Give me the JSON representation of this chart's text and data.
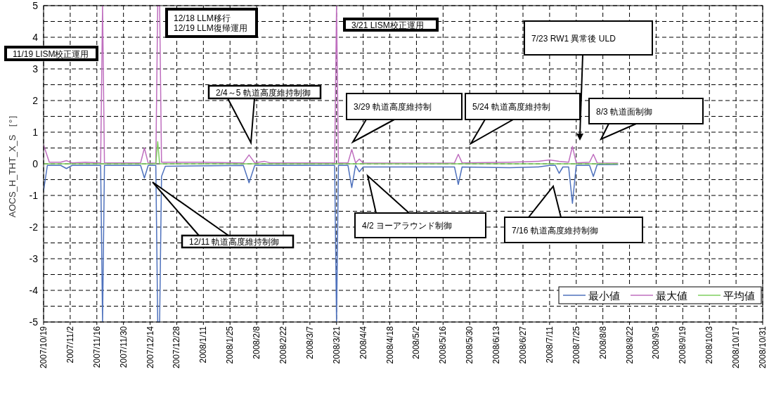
{
  "chart_data": {
    "type": "line",
    "ylabel": "AOCS_H_THT_X_S ［°］",
    "xlim": [
      "2007-10-19",
      "2008-10-31"
    ],
    "xticks": [
      {
        "value": "2007-10-19",
        "label": "2007/10/19"
      },
      {
        "value": "2007-11-02",
        "label": "2007/11/2"
      },
      {
        "value": "2007-11-16",
        "label": "2007/11/16"
      },
      {
        "value": "2007-11-30",
        "label": "2007/11/30"
      },
      {
        "value": "2007-12-14",
        "label": "2007/12/14"
      },
      {
        "value": "2007-12-28",
        "label": "2007/12/28"
      },
      {
        "value": "2008-01-11",
        "label": "2008/1/11"
      },
      {
        "value": "2008-01-25",
        "label": "2008/1/25"
      },
      {
        "value": "2008-02-08",
        "label": "2008/2/8"
      },
      {
        "value": "2008-02-22",
        "label": "2008/2/22"
      },
      {
        "value": "2008-03-07",
        "label": "2008/3/7"
      },
      {
        "value": "2008-03-21",
        "label": "2008/3/21"
      },
      {
        "value": "2008-04-04",
        "label": "2008/4/4"
      },
      {
        "value": "2008-04-18",
        "label": "2008/4/18"
      },
      {
        "value": "2008-05-02",
        "label": "2008/5/2"
      },
      {
        "value": "2008-05-16",
        "label": "2008/5/16"
      },
      {
        "value": "2008-05-30",
        "label": "2008/5/30"
      },
      {
        "value": "2008-06-13",
        "label": "2008/6/13"
      },
      {
        "value": "2008-06-27",
        "label": "2008/6/27"
      },
      {
        "value": "2008-07-11",
        "label": "2008/7/11"
      },
      {
        "value": "2008-07-25",
        "label": "2008/7/25"
      },
      {
        "value": "2008-08-08",
        "label": "2008/8/8"
      },
      {
        "value": "2008-08-22",
        "label": "2008/8/22"
      },
      {
        "value": "2008-09-05",
        "label": "2008/9/5"
      },
      {
        "value": "2008-09-19",
        "label": "2008/9/19"
      },
      {
        "value": "2008-10-03",
        "label": "2008/10/3"
      },
      {
        "value": "2008-10-17",
        "label": "2008/10/17"
      },
      {
        "value": "2008-10-31",
        "label": "2008/10/31"
      }
    ],
    "ylim": [
      -5,
      5
    ],
    "yticks": [
      -5,
      {
        "value": -4.5,
        "label": null
      },
      -4,
      {
        "value": -3.5,
        "label": null
      },
      -3,
      {
        "value": -2.5,
        "label": null
      },
      -2,
      {
        "value": -1.5,
        "label": null
      },
      -1,
      {
        "value": -0.5,
        "label": null
      },
      0,
      {
        "value": 0.5,
        "label": null
      },
      1,
      {
        "value": 1.5,
        "label": null
      },
      2,
      {
        "value": 2.5,
        "label": null
      },
      3,
      {
        "value": 3.5,
        "label": null
      },
      4,
      {
        "value": 4.5,
        "label": null
      },
      5
    ],
    "grid": true,
    "legend": "bottom right",
    "series": [
      {
        "name": "最小値",
        "color": "#4f72bd",
        "x": [
          "2007-10-19",
          "2007-10-21",
          "2007-10-28",
          "2007-10-31",
          "2007-11-03",
          "2007-11-18",
          "2007-11-19",
          "2007-11-20",
          "2007-12-09",
          "2007-12-11",
          "2007-12-13",
          "2007-12-17",
          "2007-12-18",
          "2007-12-19",
          "2007-12-20",
          "2007-12-22",
          "2008-02-01",
          "2008-02-04",
          "2008-02-07",
          "2008-03-20",
          "2008-03-21",
          "2008-03-22",
          "2008-03-27",
          "2008-03-29",
          "2008-03-31",
          "2008-04-02",
          "2008-04-04",
          "2008-05-22",
          "2008-05-24",
          "2008-05-26",
          "2008-06-20",
          "2008-07-05",
          "2008-07-11",
          "2008-07-14",
          "2008-07-16",
          "2008-07-18",
          "2008-07-21",
          "2008-07-23",
          "2008-07-25",
          "2008-08-01",
          "2008-08-03",
          "2008-08-05",
          "2008-08-16"
        ],
        "values": [
          -0.85,
          -0.05,
          -0.05,
          -0.15,
          -0.05,
          -0.05,
          -5,
          -0.05,
          -0.05,
          -0.45,
          -0.05,
          -0.05,
          -5,
          -5,
          -0.4,
          -0.08,
          -0.05,
          -0.6,
          -0.05,
          -0.05,
          -5,
          -0.05,
          -0.05,
          -0.75,
          -0.05,
          -0.25,
          -0.1,
          -0.1,
          -0.65,
          -0.1,
          -0.12,
          -0.1,
          -0.05,
          -0.05,
          -0.3,
          -0.1,
          -0.1,
          -1.25,
          -0.05,
          -0.05,
          -0.4,
          -0.03,
          -0.02
        ]
      },
      {
        "name": "最大値",
        "color": "#bf6fbf",
        "x": [
          "2007-10-19",
          "2007-10-22",
          "2007-10-28",
          "2007-10-31",
          "2007-11-03",
          "2007-11-10",
          "2007-11-18",
          "2007-11-19",
          "2007-11-20",
          "2007-11-30",
          "2007-12-09",
          "2007-12-11",
          "2007-12-13",
          "2007-12-17",
          "2007-12-18",
          "2007-12-19",
          "2007-12-20",
          "2008-01-10",
          "2008-02-01",
          "2008-02-04",
          "2008-02-07",
          "2008-02-12",
          "2008-02-15",
          "2008-03-20",
          "2008-03-21",
          "2008-03-22",
          "2008-03-27",
          "2008-03-29",
          "2008-03-31",
          "2008-04-02",
          "2008-04-04",
          "2008-05-22",
          "2008-05-24",
          "2008-05-26",
          "2008-06-20",
          "2008-07-05",
          "2008-07-11",
          "2008-07-16",
          "2008-07-21",
          "2008-07-23",
          "2008-07-25",
          "2008-08-01",
          "2008-08-03",
          "2008-08-05",
          "2008-08-16"
        ],
        "values": [
          0.6,
          0.05,
          0.05,
          0.1,
          0.03,
          0.05,
          0.03,
          5,
          0.03,
          0.03,
          0.03,
          0.5,
          0.02,
          0.02,
          5,
          5,
          0.05,
          0.05,
          0.03,
          0.28,
          0.03,
          0.08,
          0.03,
          0.03,
          5,
          0.03,
          0.03,
          0.45,
          0.03,
          0.15,
          0.02,
          0.03,
          0.3,
          0.03,
          0.05,
          0.08,
          0.12,
          0.08,
          0.05,
          0.55,
          0.03,
          0.05,
          0.3,
          0.03,
          0.02
        ]
      },
      {
        "name": "平均値",
        "color": "#7fcf5f",
        "x": [
          "2007-10-19",
          "2007-12-17",
          "2007-12-18",
          "2007-12-19",
          "2008-08-16"
        ],
        "values": [
          0,
          0,
          0.7,
          0,
          0
        ]
      }
    ],
    "annotations": [
      "11/19 LISM校正運用",
      "12/18 LLM移行\n12/19 LLM復帰運用",
      "3/21 LISM校正運用",
      "2/4～5 軌道高度維持制御",
      "3/29 軌道高度維持制",
      "5/24 軌道高度維持制",
      "8/3 軌道面制御",
      "7/23 RW1 異常後 ULD",
      "12/11 軌道高度維持制御",
      "4/2 ヨーアラウンド制御",
      "7/16 軌道高度維持制御"
    ]
  }
}
